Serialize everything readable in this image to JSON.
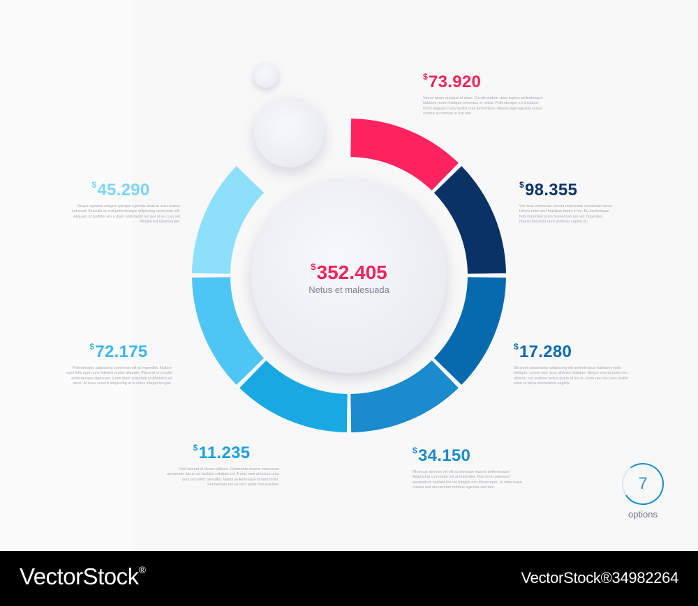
{
  "chart_data": {
    "type": "donut",
    "total": {
      "currency": "$",
      "value": "352.405",
      "caption": "Netus et malesuada"
    },
    "segments": [
      {
        "currency": "$",
        "value": "73.920",
        "color": "#ff2360",
        "description": "Varius quam quisque id diam. Condimentum vitae sapien pellentesque habitant morbi tristique senectus et netus. Pellentesque eu tincidunt tortor aliquam nulla facilisi cras fermentum. Massa eget egestas purus viverra accumsan in nisl nisi."
      },
      {
        "currency": "$",
        "value": "98.355",
        "color": "#0b3267",
        "description": "Vel risus commodo viverra maecenas accumsan lacus. Libero enim sed faucibus turpis in eu. Eu scelerisque felis imperdiet proin fermentum leo vel. Imperdiet massa tincidunt nunc pulvinar sapien et."
      },
      {
        "currency": "$",
        "value": "17.280",
        "color": "#086aae",
        "description": "Sit amet consectetur adipiscing elit pellentesque habitant morbi tristique. Lorem sed risus ultricies tristique. Neque viverra justo nec ultrices. Vel pretium lectus quam id leo in. Enim nec dui nunc mattis enim ut tellus elementum sagittis."
      },
      {
        "currency": "$",
        "value": "34.150",
        "color": "#1a8bcc",
        "description": "Rhoncus aenean vel elit scelerisque mauris pellentesque. Adipiscing commodo elit at imperdiet. Non enim praesent elementum facilisis leo vel fringilla est ullamcorper. In vitae turpis massa sed elementum tempus egestas sed sed."
      },
      {
        "currency": "$",
        "value": "11.235",
        "color": "#18a9e3",
        "description": "Velit laoreet id donec ultrices. Commodo viverra maecenas accumsan lacus vel facilisis volutpat est. A erat nam at lectus urna duis convallis convallis. Mattis pellentesque id nibh tortor. Fermentum leo vel orci porta non pulvinar."
      },
      {
        "currency": "$",
        "value": "72.175",
        "color": "#4ec6f4",
        "description": "Pellentesque adipiscing commodo elit at imperdiet. Nullam eget felis eget nunc lobortis mattis aliquam. Placerat orci nulla pellentesque dignissim. Enim diam vulputate ut pharetra sit amet. At risus viverra adipiscing at in tellus integer feugiat."
      },
      {
        "currency": "$",
        "value": "45.290",
        "color": "#8de0fa",
        "description": "Neque egestas congue quisque egestas diam in arcu cursus euismod. A iaculis at erat pellentesque adipiscing commodo elit. Aliquam ut porttitor leo a diam sollicitudin tempor id eu. Leo vel fringilla est ullamcorper."
      }
    ],
    "value_colors": [
      "#f0235a",
      "#0d3468",
      "#0a6aae",
      "#1b8acb",
      "#1c9fdc",
      "#3ab7ea",
      "#7dd4f5"
    ]
  },
  "options": {
    "count": "7",
    "label": "options",
    "ring_color": "#1a8ad0"
  },
  "footer": {
    "brand": "VectorStock",
    "reg_mark": "®",
    "image_id": "VectorStock®34982264"
  }
}
